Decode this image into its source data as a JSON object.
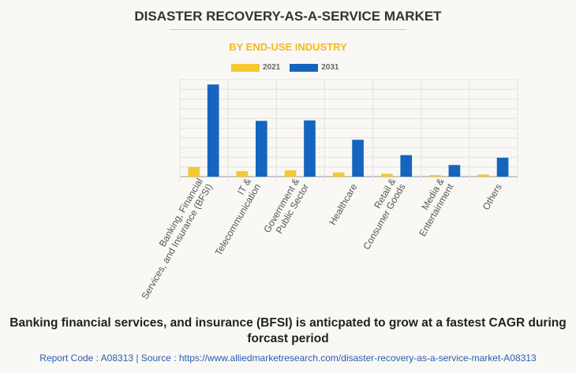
{
  "title": "DISASTER RECOVERY-AS-A-SERVICE MARKET",
  "subtitle": "BY END-USE INDUSTRY",
  "caption": "Banking financial services, and insurance (BFSI) is anticpated to grow at a fastest CAGR during forcast period",
  "footer": "Report Code : A08313  |  Source : https://www.alliedmarketresearch.com/disaster-recovery-as-a-service-market-A08313",
  "chart_data": {
    "type": "bar",
    "categories": [
      [
        "Banking, Financial",
        "Services, and Insurance (BFSI)"
      ],
      [
        "IT &",
        "Telecommunication"
      ],
      [
        "Government &",
        "Public Sector"
      ],
      [
        "Healthcare"
      ],
      [
        "Retail &",
        "Consumer Goods"
      ],
      [
        "Media &",
        "Entertainment"
      ],
      [
        "Others"
      ]
    ],
    "series": [
      {
        "name": "2021",
        "color": "#f5c830",
        "values": [
          1.0,
          0.57,
          0.65,
          0.43,
          0.3,
          0.16,
          0.22
        ]
      },
      {
        "name": "2031",
        "color": "#1565c0",
        "values": [
          9.5,
          5.75,
          5.8,
          3.8,
          2.22,
          1.2,
          1.95
        ]
      }
    ],
    "ylim": [
      0,
      10
    ],
    "grid": true,
    "legend": "top",
    "yticklabels": "none"
  }
}
